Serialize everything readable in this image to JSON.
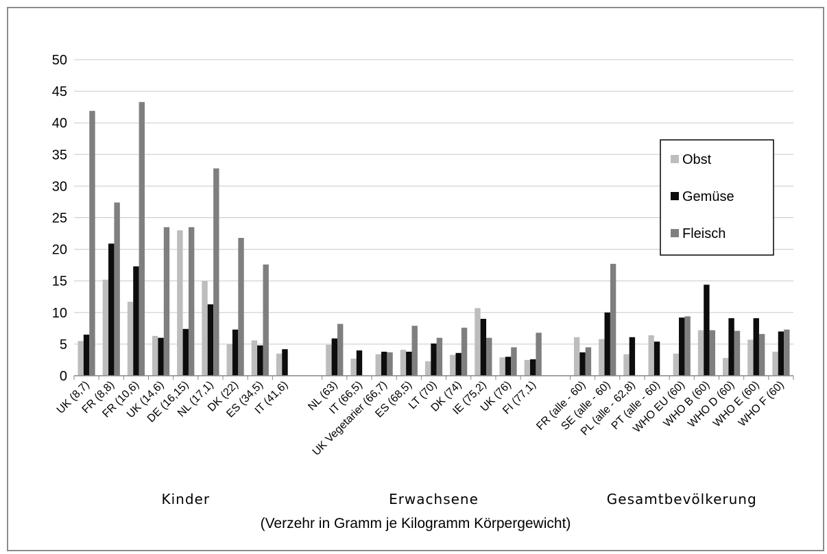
{
  "chart_data": {
    "type": "bar",
    "xlabel": "(Verzehr in Gramm je Kilogramm Körpergewicht)",
    "ylabel": "",
    "ylim": [
      0,
      50
    ],
    "yticks": [
      0,
      5,
      10,
      15,
      20,
      25,
      30,
      35,
      40,
      45,
      50
    ],
    "grid": true,
    "legend_position": "right",
    "groups": [
      {
        "label": "Kinder",
        "categories": [
          "UK (8,7)",
          "FR (8,8)",
          "FR (10,6)",
          "UK (14,6)",
          "DE (16,15)",
          "NL (17,1)",
          "DK (22)",
          "ES (34,5)",
          "IT (41,6)"
        ]
      },
      {
        "label": "Erwachsene",
        "categories": [
          "NL (63)",
          "IT (66,5)",
          "UK Vegetarier (66,7)",
          "ES (68,5)",
          "LT (70)",
          "DK (74)",
          "IE (75,2)",
          "UK (76)",
          "FI (77,1)"
        ]
      },
      {
        "label": "Gesamtbevölkerung",
        "categories": [
          "FR (alle - 60)",
          "SE (alle - 60)",
          "PL (alle - 62,8)",
          "PT (alle - 60)",
          "WHO EU (60)",
          "WHO B (60)",
          "WHO D (60)",
          "WHO E (60)",
          "WHO F (60)"
        ]
      }
    ],
    "series": [
      {
        "name": "Obst",
        "color": "#bdbdbd",
        "values": [
          5.5,
          15.2,
          11.7,
          6.3,
          23.0,
          15.0,
          5.0,
          5.6,
          3.5,
          4.9,
          2.7,
          3.4,
          4.1,
          2.3,
          3.3,
          10.7,
          2.9,
          2.5,
          6.1,
          5.8,
          3.4,
          6.4,
          3.5,
          7.2,
          2.8,
          5.7,
          3.8
        ]
      },
      {
        "name": "Gemüse",
        "color": "#0d0d0d",
        "values": [
          6.5,
          20.9,
          17.3,
          6.0,
          7.4,
          11.3,
          7.3,
          4.8,
          4.2,
          5.9,
          4.0,
          3.8,
          3.8,
          5.1,
          3.6,
          9.0,
          3.0,
          2.6,
          3.7,
          10.0,
          6.1,
          5.4,
          9.2,
          14.4,
          9.1,
          9.1,
          7.0
        ]
      },
      {
        "name": "Fleisch",
        "color": "#7f7f7f",
        "values": [
          41.9,
          27.4,
          43.3,
          23.5,
          23.5,
          32.8,
          21.8,
          17.6,
          null,
          8.2,
          null,
          3.7,
          7.9,
          6.0,
          7.6,
          6.0,
          4.5,
          6.8,
          4.5,
          17.7,
          null,
          null,
          9.4,
          7.2,
          7.1,
          6.6,
          7.3
        ]
      }
    ]
  }
}
